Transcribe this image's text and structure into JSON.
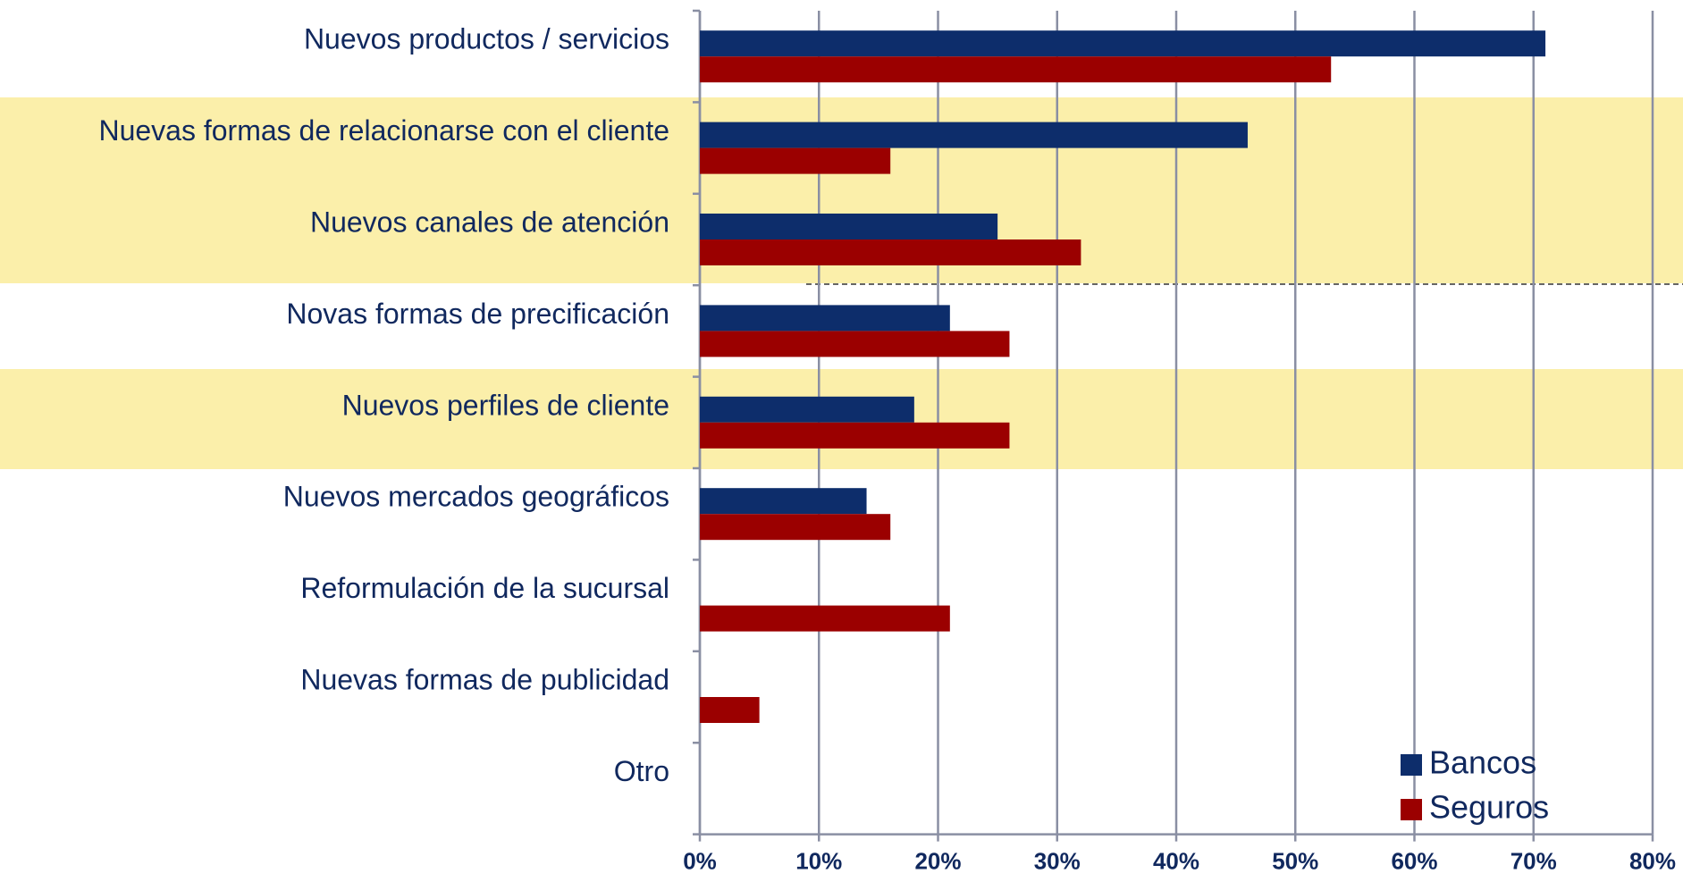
{
  "chart_data": {
    "type": "barh",
    "categories": [
      "Nuevos productos / servicios",
      "Nuevas formas de relacionarse con el cliente",
      "Nuevos canales de atención",
      "Novas formas de precificación",
      "Nuevos perfiles de cliente",
      "Nuevos mercados geográficos",
      "Reformulación de la sucursal",
      "Nuevas formas de publicidad",
      "Otro"
    ],
    "series": [
      {
        "name": "Bancos",
        "color": "#0d2d6b",
        "values": [
          71,
          46,
          25,
          21,
          18,
          14,
          0,
          0,
          0
        ]
      },
      {
        "name": "Seguros",
        "color": "#9b0000",
        "values": [
          53,
          16,
          32,
          26,
          26,
          16,
          21,
          5,
          0
        ]
      }
    ],
    "xlim": [
      0,
      80
    ],
    "xticks": [
      {
        "value": 0,
        "label": "0%"
      },
      {
        "value": 10,
        "label": "10%"
      },
      {
        "value": 20,
        "label": "20%"
      },
      {
        "value": 30,
        "label": "30%"
      },
      {
        "value": 40,
        "label": "40%"
      },
      {
        "value": 50,
        "label": "50%"
      },
      {
        "value": 60,
        "label": "60%"
      },
      {
        "value": 70,
        "label": "70%"
      },
      {
        "value": 80,
        "label": "80%"
      }
    ],
    "grid": true,
    "legend": "lower right"
  }
}
